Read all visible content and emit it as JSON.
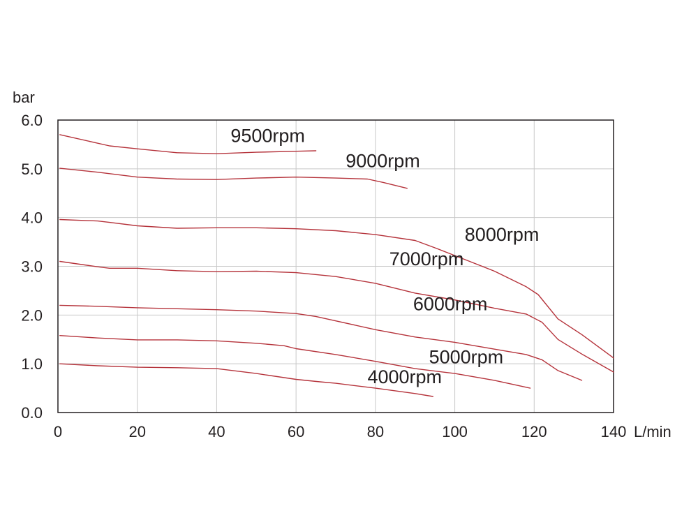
{
  "chart_data": {
    "type": "line",
    "ylabel": "bar",
    "xlabel": "L/min",
    "xlim": [
      0,
      140
    ],
    "ylim": [
      0,
      6
    ],
    "xticks": [
      "0",
      "20",
      "40",
      "60",
      "80",
      "100",
      "120",
      "140"
    ],
    "xtick_values": [
      0,
      20,
      40,
      60,
      80,
      100,
      120,
      140
    ],
    "yticks": [
      "0.0",
      "1.0",
      "2.0",
      "3.0",
      "4.0",
      "5.0",
      "6.0"
    ],
    "ytick_values": [
      0,
      1,
      2,
      3,
      4,
      5,
      6
    ],
    "grid": true,
    "line_color": "#b5333b",
    "series": [
      {
        "name": "9500rpm",
        "label_anchor": [
          43.5,
          5.55
        ],
        "x": [
          0.5,
          13,
          20,
          30,
          40,
          50,
          60,
          65
        ],
        "y": [
          5.7,
          5.47,
          5.41,
          5.33,
          5.31,
          5.34,
          5.36,
          5.37
        ]
      },
      {
        "name": "9000rpm",
        "label_anchor": [
          72.5,
          5.03
        ],
        "x": [
          0.5,
          10,
          20,
          30,
          40,
          50,
          60,
          70,
          78,
          82,
          88
        ],
        "y": [
          5.01,
          4.93,
          4.83,
          4.79,
          4.78,
          4.81,
          4.83,
          4.81,
          4.79,
          4.72,
          4.6
        ]
      },
      {
        "name": "8000rpm",
        "label_anchor": [
          102.5,
          3.52
        ],
        "x": [
          0.5,
          10,
          13,
          20,
          30,
          40,
          50,
          60,
          70,
          80,
          90,
          95,
          100,
          110,
          118,
          121,
          126,
          132,
          140
        ],
        "y": [
          3.96,
          3.93,
          3.9,
          3.83,
          3.78,
          3.79,
          3.79,
          3.77,
          3.73,
          3.65,
          3.53,
          3.38,
          3.22,
          2.9,
          2.58,
          2.42,
          1.92,
          1.6,
          1.12
        ]
      },
      {
        "name": "7000rpm",
        "label_anchor": [
          83.5,
          3.02
        ],
        "x": [
          0.5,
          10,
          13,
          20,
          30,
          40,
          50,
          60,
          70,
          80,
          90,
          100,
          110,
          118,
          122,
          126,
          132,
          140
        ],
        "y": [
          3.1,
          2.99,
          2.96,
          2.96,
          2.91,
          2.89,
          2.9,
          2.87,
          2.79,
          2.65,
          2.45,
          2.31,
          2.14,
          2.02,
          1.85,
          1.5,
          1.2,
          0.83
        ]
      },
      {
        "name": "6000rpm",
        "label_anchor": [
          89.5,
          2.1
        ],
        "x": [
          0.5,
          10,
          20,
          30,
          40,
          50,
          60,
          65,
          70,
          80,
          90,
          100,
          110,
          118,
          122,
          126,
          132
        ],
        "y": [
          2.2,
          2.18,
          2.15,
          2.13,
          2.11,
          2.08,
          2.03,
          1.97,
          1.88,
          1.7,
          1.55,
          1.44,
          1.3,
          1.19,
          1.08,
          0.86,
          0.66
        ]
      },
      {
        "name": "5000rpm",
        "label_anchor": [
          93.5,
          1.01
        ],
        "x": [
          0.5,
          10,
          20,
          30,
          40,
          50,
          57,
          60,
          70,
          80,
          90,
          100,
          110,
          119
        ],
        "y": [
          1.58,
          1.53,
          1.49,
          1.49,
          1.47,
          1.42,
          1.37,
          1.31,
          1.19,
          1.05,
          0.9,
          0.8,
          0.66,
          0.5
        ]
      },
      {
        "name": "4000rpm",
        "label_anchor": [
          78,
          0.6
        ],
        "x": [
          0.5,
          10,
          20,
          30,
          40,
          50,
          60,
          66,
          70,
          80,
          90,
          94.5
        ],
        "y": [
          1.0,
          0.96,
          0.93,
          0.92,
          0.9,
          0.8,
          0.68,
          0.63,
          0.6,
          0.5,
          0.39,
          0.33
        ]
      }
    ]
  }
}
